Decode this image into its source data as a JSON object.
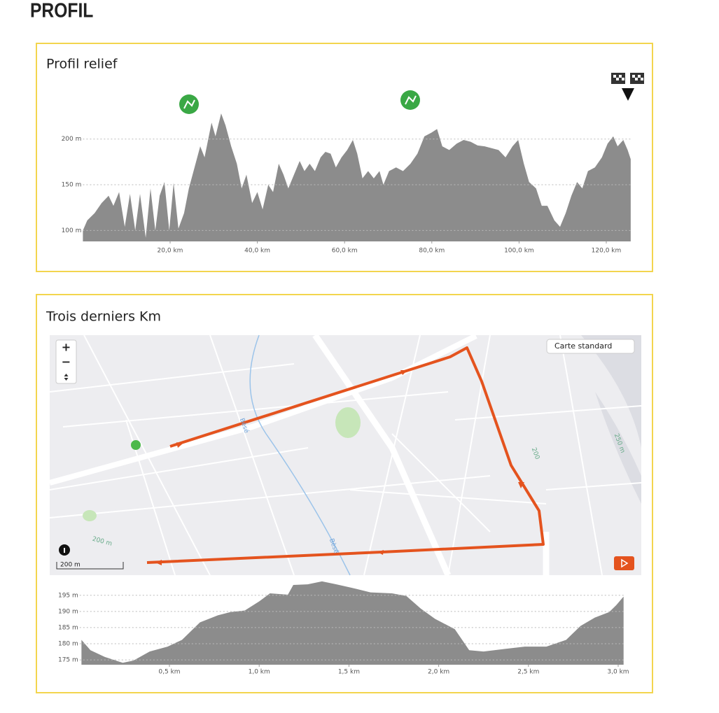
{
  "header": {
    "title": "PROFIL"
  },
  "panels": [
    {
      "title": "Profil relief"
    },
    {
      "title": "Trois derniers Km"
    }
  ],
  "map": {
    "layer": "Carte standard",
    "zoom_in": "+",
    "zoom_out": "−",
    "scale": "200 m",
    "labels": [
      "Bèsé",
      "Bèsé",
      "200 m",
      "250 m",
      "200"
    ]
  },
  "chart_data": [
    {
      "type": "area",
      "color": "#8c8c8c",
      "grid": true,
      "x": [
        0,
        1,
        2.7,
        4.3,
        5.9,
        7,
        8.3,
        9.6,
        10.8,
        12,
        13.1,
        14.4,
        15.5,
        16.6,
        17.6,
        18.7,
        19.8,
        20.8,
        21.9,
        23.2,
        24.3,
        25.6,
        26.9,
        27.9,
        29.5,
        30.4,
        31.7,
        32.7,
        34,
        35.3,
        36.4,
        37.5,
        38.8,
        40,
        41.2,
        42.5,
        43.6,
        44.9,
        46,
        47.1,
        48.4,
        49.7,
        50.8,
        52,
        53.2,
        54.5,
        55.6,
        56.8,
        58,
        59.3,
        60.6,
        61.9,
        62.9,
        64.1,
        65.4,
        66.7,
        68,
        68.9,
        70.2,
        71.8,
        73.4,
        75.1,
        76.7,
        78.3,
        79.9,
        81.2,
        82.4,
        84,
        85.7,
        87.3,
        88.9,
        90.5,
        92.1,
        93.7,
        95.3,
        96.9,
        98.5,
        99.8,
        101.1,
        102.3,
        103.9,
        105.2,
        106.5,
        108.1,
        109.4,
        110.7,
        112,
        113.3,
        114.5,
        115.8,
        117.4,
        119,
        120.3,
        121.6,
        122.6,
        123.9,
        124.9,
        125.6
      ],
      "values": [
        100,
        111,
        119,
        130,
        138,
        127,
        142,
        104,
        140,
        100,
        140,
        92,
        146,
        100,
        138,
        153,
        100,
        152,
        102,
        119,
        146,
        169,
        192,
        180,
        218,
        203,
        228,
        215,
        192,
        173,
        146,
        161,
        130,
        142,
        123,
        150,
        142,
        173,
        161,
        146,
        161,
        176,
        165,
        173,
        165,
        180,
        186,
        184,
        169,
        180,
        188,
        199,
        184,
        157,
        165,
        157,
        165,
        150,
        165,
        169,
        165,
        173,
        184,
        203,
        207,
        211,
        192,
        188,
        195,
        199,
        197,
        193,
        192,
        190,
        188,
        180,
        192,
        199,
        173,
        153,
        146,
        127,
        127,
        111,
        104,
        119,
        138,
        153,
        146,
        165,
        169,
        180,
        195,
        203,
        192,
        199,
        188,
        178
      ],
      "xlim": [
        0,
        125.7
      ],
      "ylim": [
        88,
        240
      ],
      "xticks": [
        {
          "value": 20,
          "label": "20,0 km"
        },
        {
          "value": 40,
          "label": "40,0 km"
        },
        {
          "value": 60,
          "label": "60,0 km"
        },
        {
          "value": 80,
          "label": "80,0 km"
        },
        {
          "value": 100,
          "label": "100,0 km"
        },
        {
          "value": 120,
          "label": "120,0 km"
        }
      ],
      "yticks": [
        {
          "value": 100,
          "label": "100 m"
        },
        {
          "value": 150,
          "label": "150 m"
        },
        {
          "value": 200,
          "label": "200 m"
        }
      ]
    },
    {
      "type": "area",
      "color": "#8c8c8c",
      "grid": true,
      "x": [
        0.01,
        0.06,
        0.14,
        0.24,
        0.3,
        0.39,
        0.49,
        0.57,
        0.67,
        0.77,
        0.84,
        0.92,
        1,
        1.06,
        1.16,
        1.19,
        1.27,
        1.35,
        1.43,
        1.51,
        1.62,
        1.74,
        1.82,
        1.9,
        1.98,
        2.09,
        2.17,
        2.25,
        2.37,
        2.48,
        2.6,
        2.71,
        2.79,
        2.87,
        2.95,
        2.99,
        3.03
      ],
      "values": [
        181.2,
        178,
        175.9,
        174.1,
        174.8,
        177.6,
        179.1,
        181.2,
        186.6,
        188.8,
        189.8,
        190.3,
        193.1,
        195.6,
        195.2,
        198.2,
        198.4,
        199.3,
        198.4,
        197.4,
        195.9,
        195.6,
        194.8,
        190.9,
        187.7,
        184.5,
        178,
        177.6,
        178.4,
        179.1,
        179.1,
        181.2,
        185.5,
        188.1,
        189.8,
        192,
        194.6
      ],
      "xlim": [
        0,
        3.03
      ],
      "ylim": [
        173.5,
        199.5
      ],
      "xticks": [
        {
          "value": 0.5,
          "label": "0,5 km"
        },
        {
          "value": 1,
          "label": "1,0 km"
        },
        {
          "value": 1.5,
          "label": "1,5 km"
        },
        {
          "value": 2,
          "label": "2,0 km"
        },
        {
          "value": 2.5,
          "label": "2,5 km"
        },
        {
          "value": 3,
          "label": "3,0 km"
        }
      ],
      "yticks": [
        {
          "value": 175,
          "label": "175 m"
        },
        {
          "value": 180,
          "label": "180 m"
        },
        {
          "value": 185,
          "label": "185 m"
        },
        {
          "value": 190,
          "label": "190 m"
        },
        {
          "value": 195,
          "label": "195 m"
        }
      ]
    }
  ]
}
